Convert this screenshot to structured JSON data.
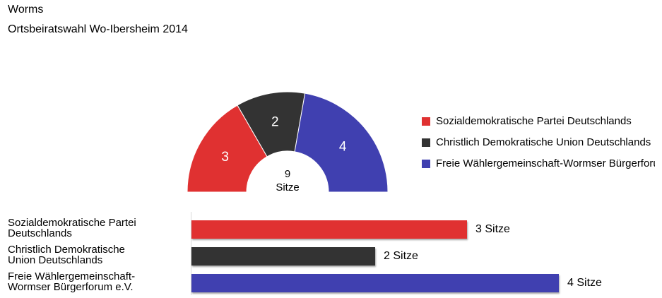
{
  "header": {
    "title": "Worms",
    "subtitle": "Ortsbeiratswahl Wo-Ibersheim 2014"
  },
  "chart_data": {
    "type": "bar",
    "total_seats": 9,
    "total_label": "Sitze",
    "unit_label": "Sitze",
    "parties": [
      {
        "legend": "Sozialdemokratische Partei Deutschlands",
        "label_line1": "Sozialdemokratische Partei",
        "label_line2": "Deutschlands",
        "seats": 3,
        "color": "#e03131"
      },
      {
        "legend": "Christlich Demokratische Union Deutschlands",
        "label_line1": "Christlich Demokratische",
        "label_line2": "Union Deutschlands",
        "seats": 2,
        "color": "#333333"
      },
      {
        "legend": "Freie Wählergemeinschaft-Wormser Bürgerforum e.V.",
        "label_line1": "Freie Wählergemeinschaft-",
        "label_line2": "Wormser Bürgerforum e.V.",
        "seats": 4,
        "color": "#4040b0"
      }
    ]
  }
}
